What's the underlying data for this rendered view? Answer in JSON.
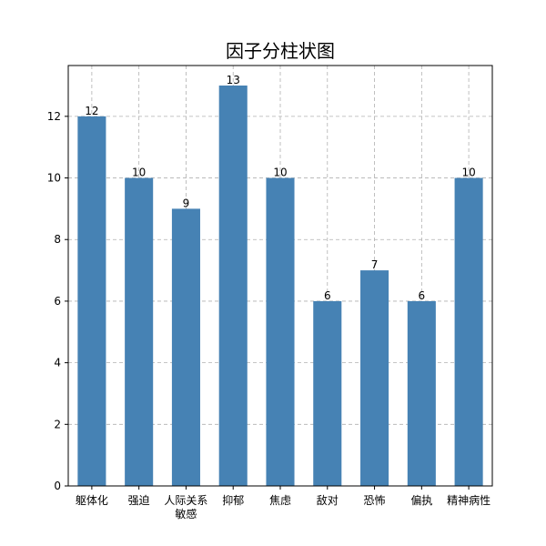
{
  "chart_data": {
    "type": "bar",
    "title": "因子分柱状图",
    "categories": [
      [
        "躯体化"
      ],
      [
        "强迫"
      ],
      [
        "人际关系",
        "敏感"
      ],
      [
        "抑郁"
      ],
      [
        "焦虑"
      ],
      [
        "敌对"
      ],
      [
        "恐怖"
      ],
      [
        "偏执"
      ],
      [
        "精神病性"
      ]
    ],
    "values": [
      12,
      10,
      9,
      13,
      10,
      6,
      7,
      6,
      10
    ],
    "data_labels": [
      "12",
      "10",
      "9",
      "13",
      "10",
      "6",
      "7",
      "6",
      "10"
    ],
    "y_ticks": [
      0,
      2,
      4,
      6,
      8,
      10,
      12
    ],
    "y_tick_labels": [
      "0",
      "2",
      "4",
      "6",
      "8",
      "10",
      "12"
    ],
    "ylim": [
      0,
      13.65
    ],
    "xlabel": "",
    "ylabel": "",
    "grid": true,
    "legend": "none",
    "colors": {
      "bar": "#4682b4",
      "grid": "#b0b0b0",
      "axis": "#000000"
    }
  }
}
